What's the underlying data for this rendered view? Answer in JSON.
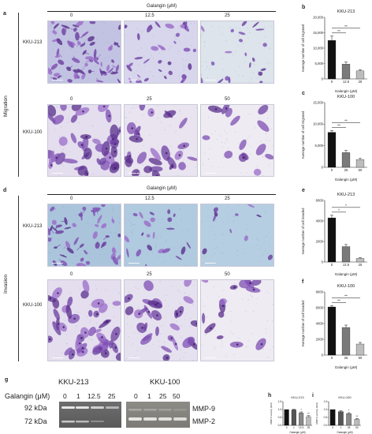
{
  "panel_letters": {
    "a": "a",
    "b": "b",
    "c": "c",
    "d": "d",
    "e": "e",
    "f": "f",
    "g": "g",
    "h": "h",
    "i": "i"
  },
  "migration": {
    "side_label": "Migration",
    "header": "Galangin (μM)",
    "rows": [
      {
        "cell_line": "KKU-213",
        "doses": [
          "0",
          "12.5",
          "25"
        ]
      },
      {
        "cell_line": "KKU-100",
        "doses": [
          "0",
          "25",
          "50"
        ]
      }
    ]
  },
  "invasion": {
    "side_label": "Invasion",
    "header": "Galangin (μM)",
    "rows": [
      {
        "cell_line": "KKU-213",
        "doses": [
          "0",
          "12.5",
          "25"
        ]
      },
      {
        "cell_line": "KKU-100",
        "doses": [
          "0",
          "25",
          "50"
        ]
      }
    ]
  },
  "gel": {
    "galangin_label": "Galangin (μM)",
    "kku213": {
      "title": "KKU-213",
      "doses": [
        "0",
        "1",
        "12.5",
        "25"
      ]
    },
    "kku100": {
      "title": "KKU-100",
      "doses": [
        "0",
        "1",
        "25",
        "50"
      ]
    },
    "markers": [
      "92 kDa",
      "72 kDa"
    ],
    "bands": [
      "MMP-9",
      "MMP-2"
    ]
  },
  "chart_data": [
    {
      "panel": "b",
      "type": "bar",
      "title": "KKU-213",
      "categories": [
        "0",
        "12.5",
        "25"
      ],
      "values": [
        12500,
        4800,
        2600
      ],
      "errors": [
        1400,
        700,
        400
      ],
      "colors": [
        "#111111",
        "#7a7a7a",
        "#bdbdbd"
      ],
      "ylim": [
        0,
        20000
      ],
      "yticks": [
        "0",
        "5,000",
        "10,000",
        "15,000",
        "20,000"
      ],
      "ylabel": "Average number of cell migrated",
      "xlabel": "Galangin (μM)",
      "sig": [
        [
          "0",
          "12.5",
          "**"
        ],
        [
          "0",
          "25",
          "**"
        ]
      ]
    },
    {
      "panel": "c",
      "type": "bar",
      "title": "KKU-100",
      "categories": [
        "0",
        "25",
        "50"
      ],
      "values": [
        8100,
        3400,
        1800
      ],
      "errors": [
        400,
        500,
        250
      ],
      "colors": [
        "#111111",
        "#7a7a7a",
        "#bdbdbd"
      ],
      "ylim": [
        0,
        15000
      ],
      "yticks": [
        "0",
        "5,000",
        "10,000",
        "15,000"
      ],
      "ylabel": "Average number of cell migrated",
      "xlabel": "Galangin (μM)",
      "sig": [
        [
          "0",
          "25",
          "**"
        ],
        [
          "0",
          "50",
          "**"
        ]
      ]
    },
    {
      "panel": "e",
      "type": "bar",
      "title": "KKU-213",
      "categories": [
        "0",
        "12.5",
        "25"
      ],
      "values": [
        4300,
        1500,
        350
      ],
      "errors": [
        250,
        200,
        60
      ],
      "colors": [
        "#111111",
        "#7a7a7a",
        "#bdbdbd"
      ],
      "ylim": [
        0,
        6000
      ],
      "yticks": [
        "0",
        "2000",
        "4000",
        "6000"
      ],
      "ylabel": "Average number of cell invaded",
      "xlabel": "Galangin (μM)",
      "sig": [
        [
          "0",
          "12.5",
          "*"
        ],
        [
          "0",
          "25",
          "*"
        ]
      ]
    },
    {
      "panel": "f",
      "type": "bar",
      "title": "KKU-100",
      "categories": [
        "0",
        "25",
        "50"
      ],
      "values": [
        6100,
        3500,
        1400
      ],
      "errors": [
        150,
        300,
        200
      ],
      "colors": [
        "#111111",
        "#7a7a7a",
        "#bdbdbd"
      ],
      "ylim": [
        0,
        8000
      ],
      "yticks": [
        "0",
        "2000",
        "4000",
        "6000",
        "8000"
      ],
      "ylabel": "Average number of cell invaded",
      "xlabel": "Galangin (μM)",
      "sig": [
        [
          "0",
          "25",
          "**"
        ],
        [
          "0",
          "50",
          "**"
        ]
      ]
    },
    {
      "panel": "h",
      "type": "bar",
      "title": "KKU-213",
      "categories": [
        "0",
        "1",
        "12.5",
        "25"
      ],
      "values": [
        1.0,
        0.98,
        0.78,
        0.55
      ],
      "errors": [
        0.0,
        0.03,
        0.07,
        0.06
      ],
      "colors": [
        "#111111",
        "#555555",
        "#8a8a8a",
        "#bbbbbb"
      ],
      "ylim": [
        0,
        1.5
      ],
      "yticks": [
        "0.0",
        "0.5",
        "1.0",
        "1.5"
      ],
      "ylabel": "MMP-9 activity (fold)",
      "xlabel": "Galangin (μM)",
      "sig": [
        [
          "12.5",
          "12.5",
          "*"
        ],
        [
          "25",
          "25",
          "**"
        ]
      ]
    },
    {
      "panel": "i",
      "type": "bar",
      "title": "KKU-100",
      "categories": [
        "0",
        "1",
        "25",
        "50"
      ],
      "values": [
        1.0,
        0.87,
        0.74,
        0.38
      ],
      "errors": [
        0.0,
        0.05,
        0.06,
        0.05
      ],
      "colors": [
        "#111111",
        "#555555",
        "#8a8a8a",
        "#bbbbbb"
      ],
      "ylim": [
        0,
        1.5
      ],
      "yticks": [
        "0.0",
        "0.5",
        "1.0",
        "1.5"
      ],
      "ylabel": "MMP-9 activity (fold)",
      "xlabel": "Galangin (μM)",
      "sig": [
        [
          "25",
          "25",
          "*"
        ],
        [
          "50",
          "50",
          "**"
        ]
      ]
    }
  ]
}
